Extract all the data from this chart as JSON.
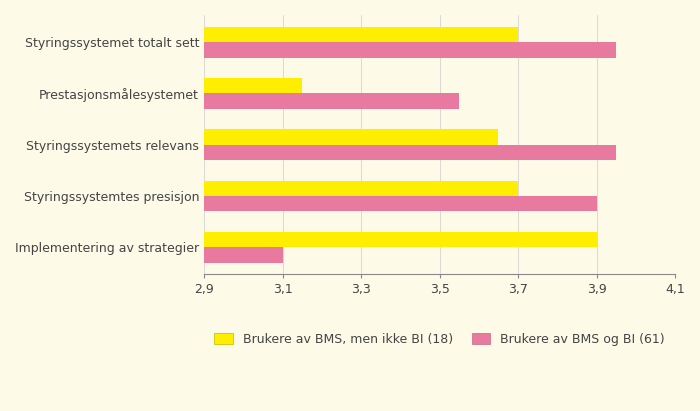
{
  "categories": [
    "Implementering av strategier",
    "Styringssystemtes presisjon",
    "Styringssystemets relevans",
    "Prestasjonsmålesystemet",
    "Styringssystemet totalt sett"
  ],
  "yellow_values": [
    3.9,
    3.7,
    3.65,
    3.15,
    3.7
  ],
  "pink_values": [
    3.1,
    3.9,
    3.95,
    3.55,
    3.95
  ],
  "yellow_color": "#FFEE00",
  "pink_color": "#E87AA0",
  "background_color": "#FDFAE8",
  "xlim": [
    2.9,
    4.1
  ],
  "xticks": [
    2.9,
    3.1,
    3.3,
    3.5,
    3.7,
    3.9,
    4.1
  ],
  "xtick_labels": [
    "2,9",
    "3,1",
    "3,3",
    "3,5",
    "3,7",
    "3,9",
    "4,1"
  ],
  "legend_yellow": "Brukere av BMS, men ikke BI (18)",
  "legend_pink": "Brukere av BMS og BI (61)",
  "bar_height": 0.3,
  "label_fontsize": 9,
  "tick_fontsize": 9
}
